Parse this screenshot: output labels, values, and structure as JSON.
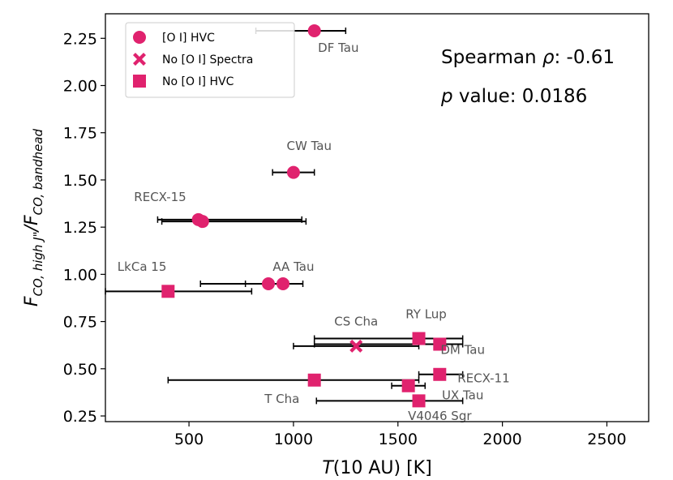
{
  "chart_data": {
    "type": "scatter",
    "xlabel": "T(10 AU) [K]",
    "xlabel_parts": {
      "var": "T",
      "rest": "(10 AU) [K]"
    },
    "ylabel": "F_CO,high J\" / F_CO,bandhead",
    "ylabel_parts": {
      "f1": "F",
      "sub1": "CO, high J\"",
      "slash": "/",
      "f2": "F",
      "sub2": "CO, bandhead"
    },
    "xlim": [
      100,
      2700
    ],
    "ylim": [
      0.22,
      2.38
    ],
    "xticks": [
      500,
      1000,
      1500,
      2000,
      2500
    ],
    "yticks": [
      0.25,
      0.5,
      0.75,
      1.0,
      1.25,
      1.5,
      1.75,
      2.0,
      2.25
    ],
    "ytick_labels": [
      "0.25",
      "0.50",
      "0.75",
      "1.00",
      "1.25",
      "1.50",
      "1.75",
      "2.00",
      "2.25"
    ],
    "marker_color": "#e0226e",
    "errorbar_color": "#000000",
    "legend": {
      "location": "upper-left",
      "entries": [
        {
          "marker": "circle",
          "label": "[O I] HVC"
        },
        {
          "marker": "x",
          "label": "No [O I] Spectra"
        },
        {
          "marker": "square",
          "label": "No [O I] HVC"
        }
      ]
    },
    "annotations": {
      "spearman_prefix": "Spearman ",
      "rho_symbol": "ρ",
      "spearman_value": ": -0.61",
      "p_symbol": "p",
      "p_value": " value: 0.0186"
    },
    "points": [
      {
        "name": "DF Tau",
        "x": 1100,
        "y": 2.29,
        "xerr_low": 820,
        "xerr_high": 1250,
        "marker": "circle",
        "label_x": 1215,
        "label_y": 2.2,
        "anchor": "middle"
      },
      {
        "name": "CW Tau",
        "x": 1000,
        "y": 1.54,
        "xerr_low": 900,
        "xerr_high": 1100,
        "marker": "circle",
        "label_x": 1075,
        "label_y": 1.68,
        "anchor": "middle"
      },
      {
        "name": "RECX-15",
        "x": 545,
        "y": 1.29,
        "xerr_low": 350,
        "xerr_high": 1040,
        "marker": "circle",
        "label_x": 362,
        "label_y": 1.41,
        "anchor": "middle"
      },
      {
        "name": "RECX-15",
        "x": 565,
        "y": 1.28,
        "xerr_low": 370,
        "xerr_high": 1060,
        "marker": "circle",
        "label_x": null,
        "label_y": null,
        "anchor": "middle"
      },
      {
        "name": "AA Tau",
        "x": 880,
        "y": 0.95,
        "xerr_low": 555,
        "xerr_high": 975,
        "marker": "circle",
        "label_x": 1000,
        "label_y": 1.04,
        "anchor": "middle"
      },
      {
        "name": "AA Tau",
        "x": 950,
        "y": 0.95,
        "xerr_low": 770,
        "xerr_high": 1045,
        "marker": "circle",
        "label_x": null,
        "label_y": null,
        "anchor": "middle"
      },
      {
        "name": "LkCa 15",
        "x": 400,
        "y": 0.91,
        "xerr_low": 100,
        "xerr_high": 800,
        "marker": "square",
        "label_x": 275,
        "label_y": 1.04,
        "anchor": "middle"
      },
      {
        "name": "RY Lup",
        "x": 1600,
        "y": 0.66,
        "xerr_low": 1100,
        "xerr_high": 1810,
        "marker": "square",
        "label_x": 1635,
        "label_y": 0.79,
        "anchor": "middle"
      },
      {
        "name": "DM Tau",
        "x": 1700,
        "y": 0.63,
        "xerr_low": 1100,
        "xerr_high": 1810,
        "marker": "square",
        "label_x": 1810,
        "label_y": 0.6,
        "anchor": "middle"
      },
      {
        "name": "CS Cha",
        "x": 1300,
        "y": 0.62,
        "xerr_low": 1000,
        "xerr_high": 1600,
        "marker": "x",
        "label_x": 1300,
        "label_y": 0.75,
        "anchor": "middle"
      },
      {
        "name": "RECX-11",
        "x": 1700,
        "y": 0.47,
        "xerr_low": 1600,
        "xerr_high": 1810,
        "marker": "square",
        "label_x": 1910,
        "label_y": 0.45,
        "anchor": "middle"
      },
      {
        "name": "T Cha",
        "x": 1100,
        "y": 0.44,
        "xerr_low": 400,
        "xerr_high": 1600,
        "marker": "square",
        "label_x": 945,
        "label_y": 0.34,
        "anchor": "middle"
      },
      {
        "name": "UX Tau",
        "x": 1550,
        "y": 0.41,
        "xerr_low": 1470,
        "xerr_high": 1630,
        "marker": "square",
        "label_x": 1810,
        "label_y": 0.36,
        "anchor": "middle"
      },
      {
        "name": "V4046 Sgr",
        "x": 1600,
        "y": 0.33,
        "xerr_low": 1110,
        "xerr_high": 1810,
        "marker": "square",
        "label_x": 1700,
        "label_y": 0.25,
        "anchor": "middle"
      }
    ]
  }
}
